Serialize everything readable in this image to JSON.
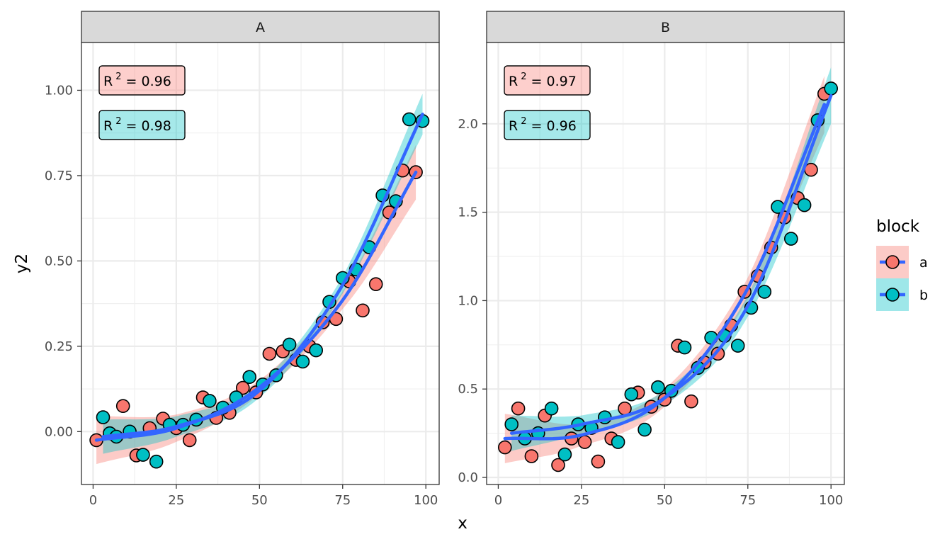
{
  "chart_data": {
    "type": "scatter",
    "xlabel": "x",
    "ylabel": "y2",
    "legend": {
      "title": "block",
      "position": "right",
      "entries": [
        {
          "key": "a",
          "label": "a",
          "fill": "#F8766D",
          "band": "#F8766D"
        },
        {
          "key": "b",
          "label": "b",
          "fill": "#00BFC4",
          "band": "#00BFC4"
        }
      ]
    },
    "line_color": "#3366FF",
    "panels": [
      {
        "strip": "A",
        "xlim": [
          -3.5,
          104
        ],
        "ylim": [
          -0.155,
          1.14
        ],
        "xticks": [
          {
            "v": 0,
            "t": "0"
          },
          {
            "v": 25,
            "t": "25"
          },
          {
            "v": 50,
            "t": "50"
          },
          {
            "v": 75,
            "t": "75"
          },
          {
            "v": 100,
            "t": "100"
          }
        ],
        "yticks": [
          {
            "v": 0,
            "t": "0.00"
          },
          {
            "v": 0.25,
            "t": "0.25"
          },
          {
            "v": 0.5,
            "t": "0.50"
          },
          {
            "v": 0.75,
            "t": "0.75"
          },
          {
            "v": 1.0,
            "t": "1.00"
          }
        ],
        "annotations": [
          {
            "group": "a",
            "label": "R",
            "sup": "2",
            "value": " = 0.96"
          },
          {
            "group": "b",
            "label": "R",
            "sup": "2",
            "value": " = 0.98"
          }
        ],
        "series": [
          {
            "name": "a",
            "points": [
              [
                1,
                -0.025
              ],
              [
                9,
                0.075
              ],
              [
                13,
                -0.07
              ],
              [
                17,
                0.01
              ],
              [
                21,
                0.038
              ],
              [
                25,
                0.01
              ],
              [
                29,
                -0.025
              ],
              [
                33,
                0.1
              ],
              [
                37,
                0.04
              ],
              [
                41,
                0.055
              ],
              [
                45,
                0.128
              ],
              [
                49,
                0.115
              ],
              [
                53,
                0.228
              ],
              [
                57,
                0.235
              ],
              [
                61,
                0.21
              ],
              [
                65,
                0.25
              ],
              [
                69,
                0.32
              ],
              [
                73,
                0.33
              ],
              [
                77,
                0.44
              ],
              [
                81,
                0.355
              ],
              [
                85,
                0.432
              ],
              [
                89,
                0.642
              ],
              [
                93,
                0.765
              ],
              [
                97,
                0.76
              ]
            ],
            "fit": [
              [
                1,
                -0.025
              ],
              [
                25,
                0.01
              ],
              [
                50,
                0.13
              ],
              [
                75,
                0.385
              ],
              [
                97,
                0.76
              ]
            ],
            "band_halfwidth": [
              0.07,
              0.04,
              0.02,
              0.025,
              0.08
            ]
          },
          {
            "name": "b",
            "points": [
              [
                3,
                0.042
              ],
              [
                5,
                -0.005
              ],
              [
                7,
                -0.015
              ],
              [
                11,
                0.0
              ],
              [
                15,
                -0.068
              ],
              [
                19,
                -0.088
              ],
              [
                23,
                0.02
              ],
              [
                27,
                0.02
              ],
              [
                31,
                0.035
              ],
              [
                35,
                0.09
              ],
              [
                39,
                0.07
              ],
              [
                43,
                0.1
              ],
              [
                47,
                0.16
              ],
              [
                51,
                0.138
              ],
              [
                55,
                0.165
              ],
              [
                59,
                0.255
              ],
              [
                63,
                0.205
              ],
              [
                67,
                0.238
              ],
              [
                71,
                0.38
              ],
              [
                75,
                0.45
              ],
              [
                79,
                0.475
              ],
              [
                83,
                0.54
              ],
              [
                87,
                0.692
              ],
              [
                91,
                0.675
              ],
              [
                95,
                0.915
              ],
              [
                99,
                0.91
              ]
            ],
            "fit": [
              [
                3,
                -0.015
              ],
              [
                25,
                0.015
              ],
              [
                50,
                0.12
              ],
              [
                75,
                0.43
              ],
              [
                99,
                0.93
              ]
            ],
            "band_halfwidth": [
              0.05,
              0.03,
              0.02,
              0.025,
              0.06
            ]
          }
        ]
      },
      {
        "strip": "B",
        "xlim": [
          -3.5,
          104
        ],
        "ylim": [
          -0.04,
          2.46
        ],
        "xticks": [
          {
            "v": 0,
            "t": "0"
          },
          {
            "v": 25,
            "t": "25"
          },
          {
            "v": 50,
            "t": "50"
          },
          {
            "v": 75,
            "t": "75"
          },
          {
            "v": 100,
            "t": "100"
          }
        ],
        "yticks": [
          {
            "v": 0,
            "t": "0.0"
          },
          {
            "v": 0.5,
            "t": "0.5"
          },
          {
            "v": 1.0,
            "t": "1.0"
          },
          {
            "v": 1.5,
            "t": "1.5"
          },
          {
            "v": 2.0,
            "t": "2.0"
          }
        ],
        "annotations": [
          {
            "group": "a",
            "label": "R",
            "sup": "2",
            "value": " = 0.97"
          },
          {
            "group": "b",
            "label": "R",
            "sup": "2",
            "value": " = 0.96"
          }
        ],
        "series": [
          {
            "name": "a",
            "points": [
              [
                2,
                0.17
              ],
              [
                6,
                0.39
              ],
              [
                10,
                0.12
              ],
              [
                14,
                0.35
              ],
              [
                18,
                0.07
              ],
              [
                22,
                0.22
              ],
              [
                26,
                0.2
              ],
              [
                30,
                0.09
              ],
              [
                34,
                0.22
              ],
              [
                38,
                0.39
              ],
              [
                42,
                0.48
              ],
              [
                46,
                0.4
              ],
              [
                50,
                0.44
              ],
              [
                54,
                0.745
              ],
              [
                58,
                0.43
              ],
              [
                62,
                0.65
              ],
              [
                66,
                0.7
              ],
              [
                70,
                0.86
              ],
              [
                74,
                1.05
              ],
              [
                78,
                1.14
              ],
              [
                82,
                1.3
              ],
              [
                86,
                1.47
              ],
              [
                90,
                1.58
              ],
              [
                94,
                1.74
              ],
              [
                98,
                2.17
              ]
            ],
            "fit": [
              [
                2,
                0.22
              ],
              [
                25,
                0.24
              ],
              [
                50,
                0.45
              ],
              [
                75,
                1.07
              ],
              [
                98,
                2.11
              ]
            ],
            "band_halfwidth": [
              0.14,
              0.06,
              0.05,
              0.06,
              0.16
            ]
          },
          {
            "name": "b",
            "points": [
              [
                4,
                0.3
              ],
              [
                8,
                0.22
              ],
              [
                12,
                0.25
              ],
              [
                16,
                0.39
              ],
              [
                20,
                0.13
              ],
              [
                24,
                0.3
              ],
              [
                28,
                0.28
              ],
              [
                32,
                0.34
              ],
              [
                36,
                0.2
              ],
              [
                40,
                0.47
              ],
              [
                44,
                0.27
              ],
              [
                48,
                0.51
              ],
              [
                52,
                0.49
              ],
              [
                56,
                0.735
              ],
              [
                60,
                0.62
              ],
              [
                64,
                0.79
              ],
              [
                68,
                0.8
              ],
              [
                72,
                0.745
              ],
              [
                76,
                0.96
              ],
              [
                80,
                1.05
              ],
              [
                84,
                1.53
              ],
              [
                88,
                1.35
              ],
              [
                92,
                1.54
              ],
              [
                96,
                2.02
              ],
              [
                100,
                2.2
              ]
            ],
            "fit": [
              [
                4,
                0.25
              ],
              [
                25,
                0.3
              ],
              [
                50,
                0.45
              ],
              [
                75,
                0.97
              ],
              [
                100,
                2.16
              ]
            ],
            "band_halfwidth": [
              0.1,
              0.05,
              0.04,
              0.06,
              0.16
            ]
          }
        ]
      }
    ]
  }
}
